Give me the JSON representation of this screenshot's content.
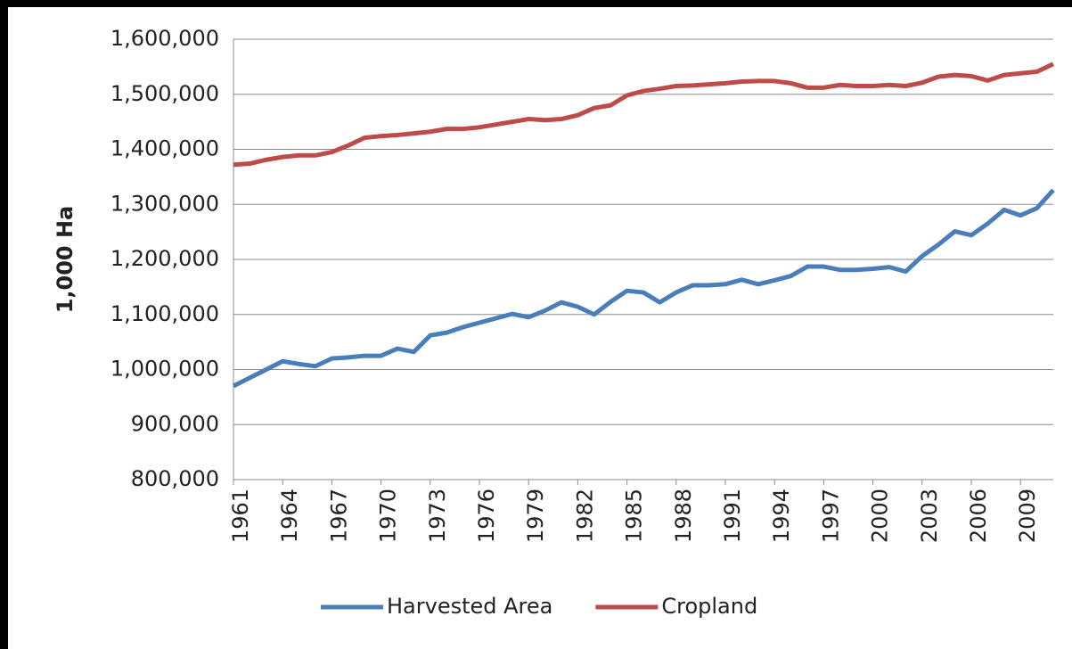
{
  "chart_data": {
    "type": "line",
    "y_label": "1,000 Ha",
    "x": [
      1961,
      1962,
      1963,
      1964,
      1965,
      1966,
      1967,
      1968,
      1969,
      1970,
      1971,
      1972,
      1973,
      1974,
      1975,
      1976,
      1977,
      1978,
      1979,
      1980,
      1981,
      1982,
      1983,
      1984,
      1985,
      1986,
      1987,
      1988,
      1989,
      1990,
      1991,
      1992,
      1993,
      1994,
      1995,
      1996,
      1997,
      1998,
      1999,
      2000,
      2001,
      2002,
      2003,
      2004,
      2005,
      2006,
      2007,
      2008,
      2009,
      2010,
      2011
    ],
    "xlim": [
      1961,
      2011
    ],
    "xticks": [
      1961,
      1964,
      1967,
      1970,
      1973,
      1976,
      1979,
      1982,
      1985,
      1988,
      1991,
      1994,
      1997,
      2000,
      2003,
      2006,
      2009
    ],
    "ylim": [
      800000,
      1600000
    ],
    "yticks": [
      {
        "value": 800000,
        "label": "800,000"
      },
      {
        "value": 900000,
        "label": "900,000"
      },
      {
        "value": 1000000,
        "label": "1,000,000"
      },
      {
        "value": 1100000,
        "label": "1,100,000"
      },
      {
        "value": 1200000,
        "label": "1,200,000"
      },
      {
        "value": 1300000,
        "label": "1,300,000"
      },
      {
        "value": 1400000,
        "label": "1,400,000"
      },
      {
        "value": 1500000,
        "label": "1,500,000"
      },
      {
        "value": 1600000,
        "label": "1,600,000"
      }
    ],
    "grid": true,
    "legend": "bottom",
    "series": [
      {
        "name": "Harvested Area",
        "color": "#4a7ebb",
        "values": [
          970000,
          985000,
          1000000,
          1015000,
          1010000,
          1006000,
          1020000,
          1022000,
          1025000,
          1025000,
          1038000,
          1032000,
          1062000,
          1067000,
          1077000,
          1085000,
          1093000,
          1101000,
          1095000,
          1107000,
          1122000,
          1114000,
          1100000,
          1123000,
          1143000,
          1140000,
          1122000,
          1140000,
          1153000,
          1153000,
          1155000,
          1163000,
          1155000,
          1162000,
          1170000,
          1187000,
          1187000,
          1181000,
          1181000,
          1183000,
          1186000,
          1178000,
          1206000,
          1227000,
          1251000,
          1244000,
          1265000,
          1290000,
          1280000,
          1293000,
          1326000
        ]
      },
      {
        "name": "Cropland",
        "color": "#be4b48",
        "values": [
          1372000,
          1374000,
          1381000,
          1386000,
          1389000,
          1389000,
          1395000,
          1407000,
          1421000,
          1424000,
          1426000,
          1429000,
          1432000,
          1437000,
          1437000,
          1440000,
          1445000,
          1450000,
          1455000,
          1453000,
          1455000,
          1462000,
          1475000,
          1480000,
          1498000,
          1506000,
          1510000,
          1515000,
          1516000,
          1518000,
          1520000,
          1523000,
          1524000,
          1524000,
          1520000,
          1512000,
          1512000,
          1517000,
          1515000,
          1515000,
          1517000,
          1515000,
          1521000,
          1532000,
          1535000,
          1533000,
          1525000,
          1535000,
          1538000,
          1541000,
          1555000
        ]
      }
    ]
  }
}
